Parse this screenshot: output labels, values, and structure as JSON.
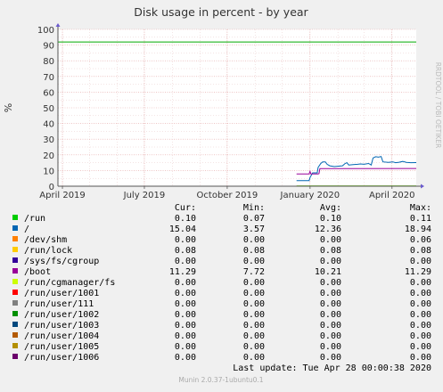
{
  "chart_data": {
    "type": "line",
    "title": "Disk usage in percent - by year",
    "ylabel": "%",
    "side_label": "RRDTOOL / TOBI OETIKER",
    "ylim": [
      0,
      100
    ],
    "yticks": [
      0,
      10,
      20,
      30,
      40,
      50,
      60,
      70,
      80,
      90,
      100
    ],
    "x_range": [
      "2019-03-27",
      "2020-04-28"
    ],
    "x_ticks": [
      {
        "label": "April 2019",
        "date": "2019-04-01"
      },
      {
        "label": "July 2019",
        "date": "2019-07-01"
      },
      {
        "label": "October 2019",
        "date": "2019-10-01"
      },
      {
        "label": "January 2020",
        "date": "2020-01-01"
      },
      {
        "label": "April 2020",
        "date": "2020-04-01"
      }
    ],
    "grid": true,
    "warning_line": {
      "value": 92,
      "color": "#00aa00"
    },
    "columns": [
      "Cur:",
      "Min:",
      "Avg:",
      "Max:"
    ],
    "series": [
      {
        "name": "/run",
        "color": "#00cc00",
        "cur": "0.10",
        "min": "0.07",
        "avg": "0.10",
        "max": "0.11",
        "points": [
          [
            "2019-12-17",
            0.1
          ],
          [
            "2020-04-28",
            0.1
          ]
        ]
      },
      {
        "name": "/",
        "color": "#0066b3",
        "cur": "15.04",
        "min": "3.57",
        "avg": "12.36",
        "max": "18.94",
        "points": [
          [
            "2019-12-17",
            3.6
          ],
          [
            "2019-12-31",
            3.6
          ],
          [
            "2020-01-01",
            5.5
          ],
          [
            "2020-01-04",
            8.5
          ],
          [
            "2020-01-09",
            8.5
          ],
          [
            "2020-01-10",
            12
          ],
          [
            "2020-01-13",
            14.5
          ],
          [
            "2020-01-15",
            15.5
          ],
          [
            "2020-01-18",
            15.5
          ],
          [
            "2020-01-20",
            14
          ],
          [
            "2020-01-23",
            13
          ],
          [
            "2020-01-28",
            12.5
          ],
          [
            "2020-02-02",
            12.8
          ],
          [
            "2020-02-06",
            13
          ],
          [
            "2020-02-09",
            14.5
          ],
          [
            "2020-02-11",
            15
          ],
          [
            "2020-02-13",
            13.5
          ],
          [
            "2020-02-18",
            13.8
          ],
          [
            "2020-02-23",
            14
          ],
          [
            "2020-02-26",
            14.2
          ],
          [
            "2020-03-01",
            14
          ],
          [
            "2020-03-06",
            14.5
          ],
          [
            "2020-03-09",
            13.5
          ],
          [
            "2020-03-11",
            18
          ],
          [
            "2020-03-14",
            18.8
          ],
          [
            "2020-03-17",
            18.5
          ],
          [
            "2020-03-20",
            18.9
          ],
          [
            "2020-03-22",
            15.5
          ],
          [
            "2020-03-28",
            15.2
          ],
          [
            "2020-04-02",
            15.5
          ],
          [
            "2020-04-05",
            15
          ],
          [
            "2020-04-09",
            15.3
          ],
          [
            "2020-04-13",
            15.8
          ],
          [
            "2020-04-17",
            15.2
          ],
          [
            "2020-04-22",
            15
          ],
          [
            "2020-04-28",
            15.04
          ]
        ]
      },
      {
        "name": "/dev/shm",
        "color": "#ff8000",
        "cur": "0.00",
        "min": "0.00",
        "avg": "0.00",
        "max": "0.06",
        "points": [
          [
            "2019-12-17",
            0
          ],
          [
            "2020-04-28",
            0
          ]
        ]
      },
      {
        "name": "/run/lock",
        "color": "#ffcc00",
        "cur": "0.08",
        "min": "0.08",
        "avg": "0.08",
        "max": "0.08",
        "points": [
          [
            "2019-12-17",
            0.08
          ],
          [
            "2020-04-28",
            0.08
          ]
        ]
      },
      {
        "name": "/sys/fs/cgroup",
        "color": "#330099",
        "cur": "0.00",
        "min": "0.00",
        "avg": "0.00",
        "max": "0.00",
        "points": [
          [
            "2019-12-17",
            0
          ],
          [
            "2020-04-28",
            0
          ]
        ]
      },
      {
        "name": "/boot",
        "color": "#990099",
        "cur": "11.29",
        "min": "7.72",
        "avg": "10.21",
        "max": "11.29",
        "points": [
          [
            "2019-12-17",
            7.8
          ],
          [
            "2019-12-31",
            7.8
          ],
          [
            "2020-01-01",
            9.5
          ],
          [
            "2020-01-02",
            7.8
          ],
          [
            "2020-01-10",
            7.8
          ],
          [
            "2020-01-11",
            8
          ],
          [
            "2020-01-12",
            11.2
          ],
          [
            "2020-04-28",
            11.29
          ]
        ]
      },
      {
        "name": "/run/cgmanager/fs",
        "color": "#ccff00",
        "cur": "0.00",
        "min": "0.00",
        "avg": "0.00",
        "max": "0.00",
        "points": []
      },
      {
        "name": "/run/user/1001",
        "color": "#ff0000",
        "cur": "0.00",
        "min": "0.00",
        "avg": "0.00",
        "max": "0.00",
        "points": []
      },
      {
        "name": "/run/user/111",
        "color": "#808080",
        "cur": "0.00",
        "min": "0.00",
        "avg": "0.00",
        "max": "0.00",
        "points": []
      },
      {
        "name": "/run/user/1002",
        "color": "#008f00",
        "cur": "0.00",
        "min": "0.00",
        "avg": "0.00",
        "max": "0.00",
        "points": []
      },
      {
        "name": "/run/user/1003",
        "color": "#00487d",
        "cur": "0.00",
        "min": "0.00",
        "avg": "0.00",
        "max": "0.00",
        "points": []
      },
      {
        "name": "/run/user/1004",
        "color": "#b35a00",
        "cur": "0.00",
        "min": "0.00",
        "avg": "0.00",
        "max": "0.00",
        "points": []
      },
      {
        "name": "/run/user/1005",
        "color": "#b38f00",
        "cur": "0.00",
        "min": "0.00",
        "avg": "0.00",
        "max": "0.00",
        "points": []
      },
      {
        "name": "/run/user/1006",
        "color": "#6b006b",
        "cur": "0.00",
        "min": "0.00",
        "avg": "0.00",
        "max": "0.00",
        "points": []
      }
    ],
    "last_update": "Last update: Tue Apr 28 00:00:38 2020",
    "footer": "Munin 2.0.37-1ubuntu0.1"
  }
}
